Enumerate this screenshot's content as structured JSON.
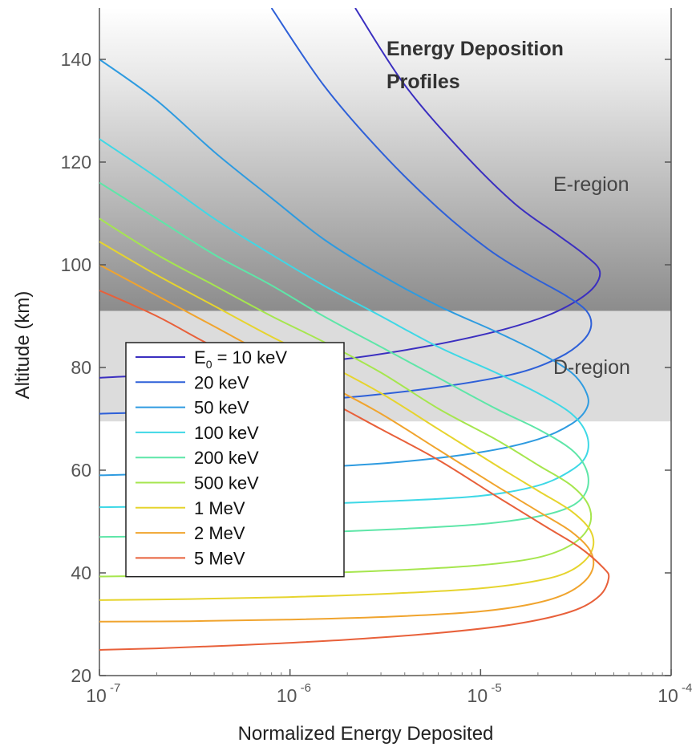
{
  "chart_data": {
    "type": "line",
    "title_lines": [
      "Energy Deposition",
      "Profiles"
    ],
    "xlabel": "Normalized Energy Deposited",
    "ylabel": "Altitude (km)",
    "x_scale": "log",
    "xlim": [
      1e-07,
      0.0001
    ],
    "ylim": [
      20,
      150
    ],
    "x_ticks": [
      {
        "base": "10",
        "exp": "-7"
      },
      {
        "base": "10",
        "exp": "-6"
      },
      {
        "base": "10",
        "exp": "-5"
      },
      {
        "base": "10",
        "exp": "-4"
      }
    ],
    "y_ticks": [
      "20",
      "40",
      "60",
      "80",
      "100",
      "120",
      "140"
    ],
    "regions": [
      {
        "name": "E-region",
        "range": [
          91,
          150
        ]
      },
      {
        "name": "D-region",
        "range": [
          69.5,
          91
        ]
      }
    ],
    "legend": {
      "position": "left"
    },
    "series": [
      {
        "name": "10 keV",
        "label_prefix": "E",
        "label_sub": "0",
        "label_rest": " = 10 keV",
        "color": "#3b2fc0",
        "points": [
          [
            2.2e-06,
            150
          ],
          [
            4e-06,
            135
          ],
          [
            8e-06,
            122
          ],
          [
            1.5e-05,
            112
          ],
          [
            2.5e-05,
            106
          ],
          [
            3.5e-05,
            102
          ],
          [
            4.2e-05,
            99
          ],
          [
            4e-05,
            96
          ],
          [
            3.2e-05,
            93
          ],
          [
            2.2e-05,
            90
          ],
          [
            1.2e-05,
            87
          ],
          [
            5e-06,
            84
          ],
          [
            1.8e-06,
            81.5
          ],
          [
            6e-07,
            80
          ],
          [
            2.5e-07,
            78.8
          ],
          [
            1e-07,
            78
          ]
        ]
      },
      {
        "name": "20 keV",
        "label": "20 keV",
        "color": "#2e60d8",
        "points": [
          [
            8e-07,
            150
          ],
          [
            1.5e-06,
            135
          ],
          [
            3e-06,
            122
          ],
          [
            6e-06,
            111
          ],
          [
            1.1e-05,
            103
          ],
          [
            1.8e-05,
            98
          ],
          [
            2.8e-05,
            94
          ],
          [
            3.6e-05,
            91
          ],
          [
            3.8e-05,
            88
          ],
          [
            3.4e-05,
            85
          ],
          [
            2.6e-05,
            82
          ],
          [
            1.6e-05,
            79
          ],
          [
            7e-06,
            76.5
          ],
          [
            2.5e-06,
            74.5
          ],
          [
            7e-07,
            72.8
          ],
          [
            2.5e-07,
            71.5
          ],
          [
            1e-07,
            71
          ]
        ]
      },
      {
        "name": "50 keV",
        "label": "50 keV",
        "color": "#2e9be0",
        "points": [
          [
            1e-07,
            140
          ],
          [
            2e-07,
            132
          ],
          [
            4e-07,
            122
          ],
          [
            8e-07,
            113
          ],
          [
            1.5e-06,
            105
          ],
          [
            3e-06,
            98
          ],
          [
            6e-06,
            92
          ],
          [
            1.2e-05,
            87
          ],
          [
            2e-05,
            83
          ],
          [
            3e-05,
            79
          ],
          [
            3.6e-05,
            75
          ],
          [
            3.6e-05,
            72
          ],
          [
            3e-05,
            69
          ],
          [
            2e-05,
            66
          ],
          [
            1e-05,
            63.5
          ],
          [
            3.5e-06,
            61.5
          ],
          [
            1e-06,
            60.3
          ],
          [
            3e-07,
            59.5
          ],
          [
            1e-07,
            59
          ]
        ]
      },
      {
        "name": "100 keV",
        "label": "100 keV",
        "color": "#3ed8e6",
        "points": [
          [
            1e-07,
            124.5
          ],
          [
            2e-07,
            117
          ],
          [
            4e-07,
            109
          ],
          [
            8e-07,
            102
          ],
          [
            1.5e-06,
            96
          ],
          [
            3e-06,
            90
          ],
          [
            6e-06,
            84
          ],
          [
            1.2e-05,
            79
          ],
          [
            2e-05,
            75
          ],
          [
            3e-05,
            71
          ],
          [
            3.6e-05,
            67
          ],
          [
            3.6e-05,
            63
          ],
          [
            3e-05,
            60
          ],
          [
            2e-05,
            57
          ],
          [
            1e-05,
            55
          ],
          [
            3.5e-06,
            54
          ],
          [
            1e-06,
            53.3
          ],
          [
            3e-07,
            53
          ],
          [
            1e-07,
            52.8
          ]
        ]
      },
      {
        "name": "200 keV",
        "label": "200 keV",
        "color": "#5ee6a8",
        "points": [
          [
            1e-07,
            116
          ],
          [
            2e-07,
            109
          ],
          [
            4e-07,
            102
          ],
          [
            8e-07,
            96
          ],
          [
            1.5e-06,
            90
          ],
          [
            3e-06,
            84
          ],
          [
            6e-06,
            78
          ],
          [
            1.2e-05,
            72
          ],
          [
            2e-05,
            68
          ],
          [
            3e-05,
            64
          ],
          [
            3.6e-05,
            60
          ],
          [
            3.6e-05,
            56
          ],
          [
            3e-05,
            53
          ],
          [
            2e-05,
            51
          ],
          [
            1e-05,
            49.5
          ],
          [
            3.5e-06,
            48.5
          ],
          [
            1e-06,
            47.7
          ],
          [
            3e-07,
            47.2
          ],
          [
            1e-07,
            47
          ]
        ]
      },
      {
        "name": "500 keV",
        "label": "500 keV",
        "color": "#a6e64e",
        "points": [
          [
            1e-07,
            109
          ],
          [
            2e-07,
            102
          ],
          [
            4e-07,
            96
          ],
          [
            8e-07,
            90
          ],
          [
            1.5e-06,
            85
          ],
          [
            3e-06,
            79
          ],
          [
            6e-06,
            72
          ],
          [
            1.2e-05,
            66
          ],
          [
            2e-05,
            61
          ],
          [
            3e-05,
            57
          ],
          [
            3.7e-05,
            53
          ],
          [
            3.7e-05,
            49
          ],
          [
            3e-05,
            45.5
          ],
          [
            2e-05,
            43
          ],
          [
            1e-05,
            41.5
          ],
          [
            3.5e-06,
            40.5
          ],
          [
            1e-06,
            39.8
          ],
          [
            3e-07,
            39.5
          ],
          [
            1e-07,
            39.3
          ]
        ]
      },
      {
        "name": "1 MeV",
        "label": "1 MeV",
        "color": "#e6d42e",
        "points": [
          [
            1e-07,
            104.5
          ],
          [
            2e-07,
            98
          ],
          [
            4e-07,
            92
          ],
          [
            8e-07,
            86
          ],
          [
            1.5e-06,
            81
          ],
          [
            3e-06,
            75
          ],
          [
            6e-06,
            68
          ],
          [
            1.2e-05,
            61
          ],
          [
            2e-05,
            56
          ],
          [
            3e-05,
            52
          ],
          [
            3.8e-05,
            48
          ],
          [
            3.8e-05,
            44
          ],
          [
            3e-05,
            40.5
          ],
          [
            2e-05,
            38.5
          ],
          [
            1e-05,
            37
          ],
          [
            3.5e-06,
            36
          ],
          [
            1e-06,
            35.3
          ],
          [
            3e-07,
            34.9
          ],
          [
            1e-07,
            34.7
          ]
        ]
      },
      {
        "name": "2 MeV",
        "label": "2 MeV",
        "color": "#f0a42e",
        "points": [
          [
            1e-07,
            100
          ],
          [
            2e-07,
            94
          ],
          [
            4e-07,
            88
          ],
          [
            8e-07,
            82
          ],
          [
            1.5e-06,
            77
          ],
          [
            3e-06,
            71
          ],
          [
            6e-06,
            64
          ],
          [
            1.2e-05,
            57
          ],
          [
            2e-05,
            52
          ],
          [
            3e-05,
            48
          ],
          [
            3.8e-05,
            44
          ],
          [
            3.8e-05,
            40
          ],
          [
            3e-05,
            36.5
          ],
          [
            2e-05,
            34.2
          ],
          [
            1e-05,
            32.5
          ],
          [
            3.5e-06,
            31.5
          ],
          [
            1e-06,
            30.9
          ],
          [
            3e-07,
            30.6
          ],
          [
            1e-07,
            30.5
          ]
        ]
      },
      {
        "name": "5 MeV",
        "label": "5 MeV",
        "color": "#e8603a",
        "points": [
          [
            1e-07,
            95
          ],
          [
            2e-07,
            90
          ],
          [
            4e-07,
            84
          ],
          [
            8e-07,
            79
          ],
          [
            1.5e-06,
            74
          ],
          [
            3e-06,
            68
          ],
          [
            6e-06,
            62
          ],
          [
            1.2e-05,
            55
          ],
          [
            2.2e-05,
            49
          ],
          [
            3.3e-05,
            45
          ],
          [
            4.4e-05,
            41
          ],
          [
            4.7e-05,
            39
          ],
          [
            4.2e-05,
            35.5
          ],
          [
            3e-05,
            32.5
          ],
          [
            1.5e-05,
            30
          ],
          [
            6e-06,
            28.3
          ],
          [
            2e-06,
            27
          ],
          [
            6e-07,
            26
          ],
          [
            2e-07,
            25.3
          ],
          [
            1e-07,
            25
          ]
        ]
      }
    ]
  }
}
